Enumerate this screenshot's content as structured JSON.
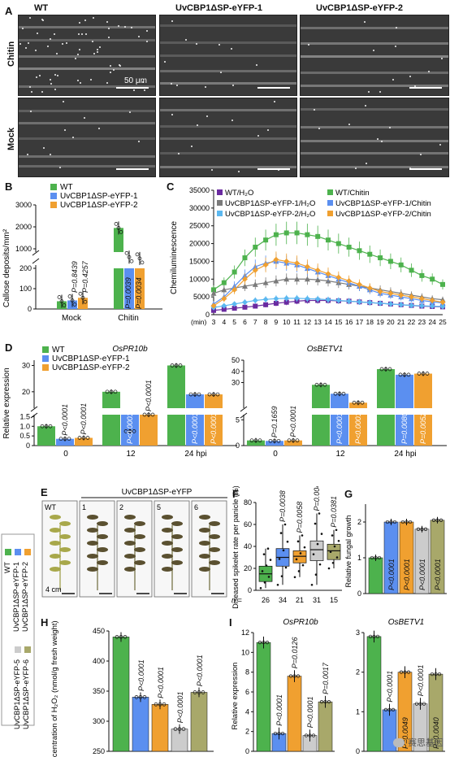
{
  "panelA": {
    "label": "A",
    "columns": [
      "WT",
      "UvCBP1ΔSP-eYFP-1",
      "UvCBP1ΔSP-eYFP-2"
    ],
    "rows": [
      "Chitin",
      "Mock"
    ],
    "scale": "50 μm"
  },
  "panelB": {
    "label": "B",
    "ylabel": "Callose deposits/mm²",
    "legend": [
      "WT",
      "UvCBP1ΔSP-eYFP-1",
      "UvCBP1ΔSP-eYFP-2"
    ],
    "colors": [
      "#4db24d",
      "#5b8ff0",
      "#f0a030"
    ],
    "chart_data": {
      "type": "bar",
      "categories": [
        "Mock",
        "Chitin"
      ],
      "series": [
        {
          "name": "WT",
          "values": [
            38,
            1950
          ]
        },
        {
          "name": "UvCBP1ΔSP-eYFP-1",
          "values": [
            42,
            620
          ]
        },
        {
          "name": "UvCBP1ΔSP-eYFP-2",
          "values": [
            55,
            560
          ]
        }
      ],
      "yticks": [
        "0",
        "100",
        "200",
        "1000",
        "2000",
        "3000"
      ],
      "pvalues": [
        "P=0.8439",
        "P=0.4257",
        "P=0.0039",
        "P=0.0034"
      ]
    }
  },
  "panelC": {
    "label": "C",
    "ylabel": "Chemiluminescence",
    "xunit": "(min)",
    "legend": [
      "WT/H₂O",
      "WT/Chitin",
      "UvCBP1ΔSP-eYFP-1/H₂O",
      "UvCBP1ΔSP-eYFP-1/Chitin",
      "UvCBP1ΔSP-eYFP-2/H₂O",
      "UvCBP1ΔSP-eYFP-2/Chitin"
    ],
    "colors": [
      "#6a2aa0",
      "#4db24d",
      "#7a7a7a",
      "#5b8ff0",
      "#5bb8f0",
      "#f0a030"
    ],
    "chart_data": {
      "type": "line",
      "x": [
        3,
        4,
        5,
        6,
        7,
        8,
        9,
        10,
        11,
        12,
        13,
        14,
        15,
        16,
        17,
        18,
        19,
        20,
        21,
        22,
        23,
        24,
        25
      ],
      "ylim": [
        0,
        35000
      ],
      "yticks": [
        "0",
        "5000",
        "10000",
        "15000",
        "20000",
        "25000",
        "30000",
        "35000"
      ],
      "series": [
        {
          "name": "WT/H₂O",
          "values": [
            1200,
            1500,
            1800,
            2100,
            2400,
            2800,
            3200,
            3500,
            3800,
            4000,
            4000,
            4000,
            3900,
            3800,
            3600,
            3400,
            3200,
            3000,
            2800,
            2600,
            2400,
            2300,
            2200
          ]
        },
        {
          "name": "WT/Chitin",
          "values": [
            7000,
            9000,
            12000,
            16000,
            19000,
            21000,
            22500,
            23000,
            23000,
            22500,
            22000,
            21000,
            20000,
            19000,
            18000,
            17000,
            16000,
            15000,
            14000,
            12500,
            11000,
            10000,
            8500
          ]
        },
        {
          "name": "UvCBP1ΔSP-eYFP-1/H₂O",
          "values": [
            6000,
            7000,
            7500,
            8000,
            8500,
            9000,
            9500,
            10000,
            10000,
            10000,
            9800,
            9500,
            9000,
            8500,
            8000,
            7500,
            7000,
            6500,
            6000,
            5500,
            5000,
            4500,
            4200
          ]
        },
        {
          "name": "UvCBP1ΔSP-eYFP-1/Chitin",
          "values": [
            3000,
            5000,
            8000,
            11000,
            13500,
            14500,
            15000,
            14500,
            14000,
            13000,
            12000,
            11000,
            10000,
            9000,
            8000,
            7000,
            6000,
            5500,
            5000,
            4500,
            4000,
            3600,
            3300
          ]
        },
        {
          "name": "UvCBP1ΔSP-eYFP-2/H₂O",
          "values": [
            2000,
            2500,
            3000,
            3500,
            4000,
            4300,
            4500,
            4600,
            4600,
            4500,
            4400,
            4200,
            4000,
            3800,
            3600,
            3400,
            3200,
            3000,
            2800,
            2600,
            2500,
            2400,
            2300
          ]
        },
        {
          "name": "UvCBP1ΔSP-eYFP-2/Chitin",
          "values": [
            2500,
            4500,
            7000,
            10000,
            12500,
            14000,
            15500,
            15000,
            14500,
            13500,
            12500,
            11500,
            10500,
            9500,
            8500,
            7500,
            6500,
            6000,
            5500,
            5000,
            4500,
            4000,
            3500
          ]
        }
      ]
    }
  },
  "panelD": {
    "label": "D",
    "ylabel": "Relative expression",
    "legend": [
      "WT",
      "UvCBP1ΔSP-eYFP-1",
      "UvCBP1ΔSP-eYFP-2"
    ],
    "colors": [
      "#4db24d",
      "#5b8ff0",
      "#f0a030"
    ],
    "charts": [
      {
        "title": "OsPR10b",
        "chart_data": {
          "type": "bar",
          "categories": [
            "0",
            "12",
            "24 hpi"
          ],
          "series": [
            {
              "name": "WT",
              "values": [
                1.0,
                20,
                30
              ]
            },
            {
              "name": "UvCBP1ΔSP-eYFP-1",
              "values": [
                0.35,
                5,
                19
              ]
            },
            {
              "name": "UvCBP1ΔSP-eYFP-2",
              "values": [
                0.4,
                1.6,
                19
              ]
            }
          ],
          "pvalues": [
            "P<0.0001",
            "P<0.0001",
            "P<0.0001",
            "P<0.0001",
            "P<0.0001",
            "P<0.0001"
          ]
        }
      },
      {
        "title": "OsBETV1",
        "chart_data": {
          "type": "bar",
          "categories": [
            "0",
            "12",
            "24 hpi"
          ],
          "series": [
            {
              "name": "WT",
              "values": [
                1.0,
                28,
                42
              ]
            },
            {
              "name": "UvCBP1ΔSP-eYFP-1",
              "values": [
                0.9,
                20,
                37
              ]
            },
            {
              "name": "UvCBP1ΔSP-eYFP-2",
              "values": [
                1.0,
                12,
                38
              ]
            }
          ],
          "pvalues": [
            "P=0.1659",
            "P<0.0001",
            "P<0.0001",
            "P<0.0001",
            "P=0.0080",
            "P=0.0052"
          ]
        }
      }
    ]
  },
  "sideLegend": {
    "top": [
      "WT",
      "UvCBP1ΔSP-eYFP-1",
      "UvCBP1ΔSP-eYFP-2"
    ],
    "topColors": [
      "#4db24d",
      "#5b8ff0",
      "#f0a030"
    ],
    "bottom": [
      "UvCBP1ΔSP-eYFP-5",
      "UvCBP1ΔSP-eYFP-6"
    ],
    "bottomColors": [
      "#cccccc",
      "#a8a86a"
    ]
  },
  "panelE": {
    "label": "E",
    "header": "UvCBP1ΔSP-eYFP",
    "plants": [
      "WT",
      "1",
      "2",
      "5",
      "6"
    ],
    "scale": "4 cm"
  },
  "panelF": {
    "label": "F",
    "ylabel": "Diseased spikelet rate per panicle (%)",
    "chart_data": {
      "type": "box",
      "ylim": [
        0,
        80
      ],
      "yticks": [
        "0",
        "20",
        "40",
        "60",
        "80"
      ],
      "groups": [
        {
          "n": 26,
          "median": 15,
          "q1": 8,
          "q3": 22,
          "min": 2,
          "max": 38
        },
        {
          "n": 34,
          "median": 30,
          "q1": 22,
          "q3": 38,
          "min": 5,
          "max": 60
        },
        {
          "n": 21,
          "median": 31,
          "q1": 25,
          "q3": 36,
          "min": 12,
          "max": 50
        },
        {
          "n": 31,
          "median": 37,
          "q1": 27,
          "q3": 45,
          "min": 5,
          "max": 70
        },
        {
          "n": 15,
          "median": 36,
          "q1": 28,
          "q3": 42,
          "min": 20,
          "max": 55
        }
      ],
      "pvalues": [
        "P=0.0038",
        "P=0.0058",
        "P=0.0046",
        "P=0.0381"
      ],
      "n_label": "n ="
    }
  },
  "panelG": {
    "label": "G",
    "ylabel": "Relative fungal growth",
    "chart_data": {
      "type": "bar",
      "ylim": [
        0,
        2.5
      ],
      "yticks": [
        "0",
        "1",
        "2"
      ],
      "values": [
        1.0,
        2.0,
        2.0,
        1.8,
        2.05
      ],
      "pvalues": [
        "P<0.0001",
        "P<0.0001",
        "P<0.0001",
        "P<0.0001"
      ]
    }
  },
  "panelH": {
    "label": "H",
    "ylabel": "Concentration of H₂O₂ (nmol/g fresh weight)",
    "chart_data": {
      "type": "bar",
      "ylim": [
        250,
        450
      ],
      "yticks": [
        "250",
        "300",
        "350",
        "400",
        "450"
      ],
      "values": [
        440,
        340,
        328,
        287,
        348
      ],
      "pvalues": [
        "P<0.0001",
        "P<0.0001",
        "P<0.0001",
        "P<0.0001"
      ]
    }
  },
  "panelI": {
    "label": "I",
    "ylabel": "Relative expression",
    "charts": [
      {
        "title": "OsPR10b",
        "chart_data": {
          "type": "bar",
          "ylim": [
            0,
            12
          ],
          "yticks": [
            "0",
            "2",
            "4",
            "6",
            "8",
            "10",
            "12"
          ],
          "values": [
            11,
            1.8,
            7.6,
            1.6,
            5.0
          ],
          "pvalues": [
            "P<0.0001",
            "P=0.0126",
            "P<0.0001",
            "P=0.0017"
          ]
        }
      },
      {
        "title": "OsBETV1",
        "chart_data": {
          "type": "bar",
          "ylim": [
            0,
            3
          ],
          "yticks": [
            "0",
            "1",
            "2",
            "3"
          ],
          "values": [
            2.9,
            1.05,
            2.0,
            1.2,
            1.95
          ],
          "pvalues": [
            "P<0.0001",
            "P=0.0049",
            "P<0.0001",
            "P=0.0040"
          ]
        }
      }
    ]
  },
  "watermark": "赛思基因"
}
